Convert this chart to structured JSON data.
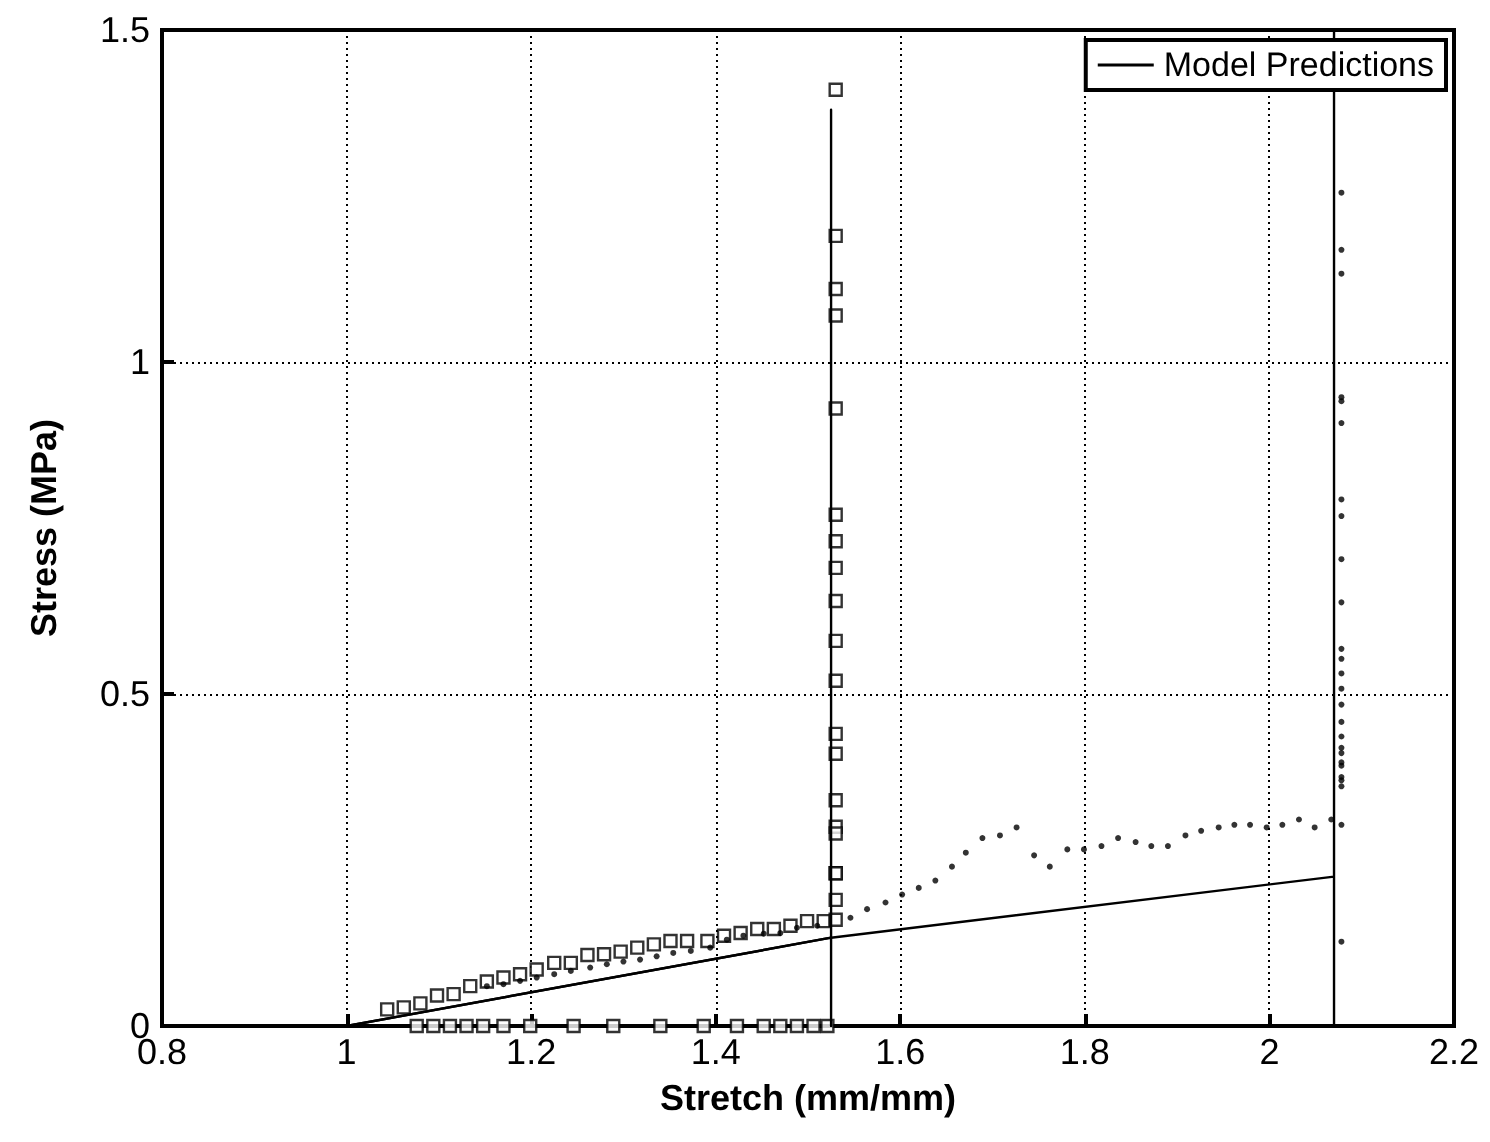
{
  "chart_data": {
    "type": "line",
    "xlabel": "Stretch (mm/mm)",
    "ylabel": "Stress (MPa)",
    "xlim": [
      0.8,
      2.2
    ],
    "xticks": [
      0.8,
      1,
      1.2,
      1.4,
      1.6,
      1.8,
      2,
      2.2
    ],
    "ylim": [
      0,
      1.5
    ],
    "yticks": [
      0,
      0.5,
      1,
      1.5
    ],
    "grid": true,
    "legend": "top right",
    "series": [
      {
        "name": "Model Predictions",
        "color": "#000000",
        "marker": "none",
        "line_style": "solid",
        "x": [
          1.0,
          1.525,
          1.525,
          1.525
        ],
        "values": [
          0,
          0.133,
          1.38,
          0
        ]
      },
      {
        "color": "#000000",
        "marker": "none",
        "line_style": "solid",
        "x": [
          1.0,
          1.525,
          2.07,
          2.07,
          2.07
        ],
        "values": [
          0,
          0.133,
          0.225,
          1.5,
          0
        ]
      },
      {
        "type": "scatter",
        "color": "#000000",
        "marker": "square",
        "x": [
          1.044,
          1.062,
          1.08,
          1.098,
          1.116,
          1.134,
          1.152,
          1.17,
          1.188,
          1.206,
          1.225,
          1.243,
          1.261,
          1.279,
          1.297,
          1.315,
          1.333,
          1.351,
          1.369,
          1.391,
          1.409,
          1.427,
          1.445,
          1.463,
          1.481,
          1.499,
          1.517,
          1.53,
          1.53,
          1.53,
          1.53,
          1.53,
          1.53,
          1.53,
          1.53,
          1.53,
          1.53,
          1.53,
          1.53,
          1.53,
          1.53,
          1.53,
          1.53,
          1.53,
          1.53,
          1.53,
          1.53,
          1.076,
          1.094,
          1.112,
          1.13,
          1.148,
          1.17,
          1.199,
          1.246,
          1.289,
          1.34,
          1.387,
          1.423,
          1.452,
          1.47,
          1.488,
          1.506,
          1.521
        ],
        "values": [
          0.025,
          0.028,
          0.034,
          0.046,
          0.048,
          0.06,
          0.067,
          0.073,
          0.078,
          0.085,
          0.095,
          0.095,
          0.107,
          0.108,
          0.112,
          0.118,
          0.123,
          0.128,
          0.128,
          0.128,
          0.136,
          0.14,
          0.146,
          0.146,
          0.151,
          0.158,
          0.158,
          1.41,
          1.19,
          1.11,
          1.07,
          0.93,
          0.77,
          0.73,
          0.69,
          0.64,
          0.58,
          0.52,
          0.44,
          0.41,
          0.34,
          0.3,
          0.29,
          0.23,
          0.23,
          0.19,
          0.16,
          0,
          0,
          0,
          0,
          0,
          0,
          0,
          0,
          0,
          0,
          0,
          0,
          0,
          0,
          0,
          0,
          0
        ]
      },
      {
        "type": "scatter",
        "color": "#000000",
        "marker": "circle",
        "x": [
          1.152,
          1.17,
          1.188,
          1.206,
          1.225,
          1.243,
          1.264,
          1.282,
          1.3,
          1.318,
          1.336,
          1.354,
          1.373,
          1.394,
          1.412,
          1.43,
          1.452,
          1.47,
          1.488,
          1.51,
          1.546,
          1.564,
          1.584,
          1.602,
          1.62,
          1.638,
          1.656,
          1.671,
          1.689,
          1.708,
          1.726,
          1.745,
          1.762,
          1.781,
          1.799,
          1.818,
          1.836,
          1.855,
          1.872,
          1.89,
          1.909,
          1.926,
          1.945,
          1.962,
          1.979,
          1.997,
          2.014,
          2.032,
          2.049,
          2.067,
          2.078,
          2.078,
          2.078,
          2.078,
          2.078,
          2.078,
          2.078,
          2.078,
          2.078,
          2.078,
          2.078,
          2.078,
          2.078,
          2.078,
          2.078,
          2.078,
          2.078,
          2.078,
          2.078,
          2.078,
          2.078,
          2.078,
          2.078,
          2.078,
          2.078,
          2.078
        ],
        "values": [
          0.06,
          0.063,
          0.068,
          0.073,
          0.078,
          0.083,
          0.088,
          0.093,
          0.097,
          0.1,
          0.105,
          0.11,
          0.113,
          0.118,
          0.13,
          0.136,
          0.139,
          0.14,
          0.148,
          0.151,
          0.163,
          0.176,
          0.186,
          0.198,
          0.208,
          0.219,
          0.24,
          0.261,
          0.283,
          0.287,
          0.299,
          0.257,
          0.24,
          0.266,
          0.266,
          0.271,
          0.283,
          0.277,
          0.271,
          0.271,
          0.287,
          0.294,
          0.299,
          0.303,
          0.303,
          0.299,
          0.303,
          0.311,
          0.299,
          0.311,
          0.303,
          0.127,
          0.361,
          0.37,
          0.375,
          0.392,
          0.397,
          0.411,
          0.419,
          0.436,
          0.458,
          0.484,
          0.508,
          0.531,
          0.553,
          0.568,
          0.638,
          0.703,
          0.768,
          0.793,
          0.908,
          0.941,
          0.947,
          1.133,
          1.169,
          1.255
        ]
      }
    ]
  }
}
